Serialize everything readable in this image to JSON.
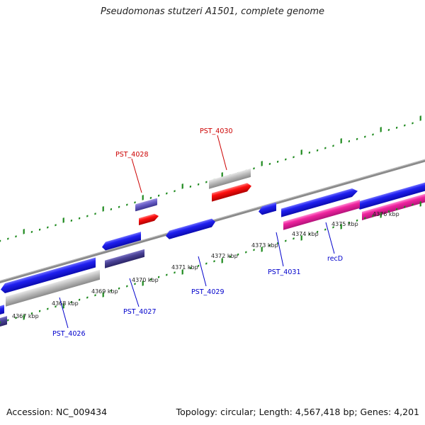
{
  "title": "Pseudomonas stutzeri A1501, complete genome",
  "footer": {
    "accession": "Accession: NC_009434",
    "stats": "Topology: circular; Length: 4,567,418 bp; Genes: 4,201"
  },
  "colors": {
    "forward_gene": "#1a1aee",
    "reverse_gene": "#2b2bd9",
    "rna_gene": "#ee1111",
    "pseudogene": "#b8b8b8",
    "highlight_gene": "#ee1fa0",
    "hypothetical_gene": "#6a5acd",
    "backbone": "#888888",
    "tick": "#1f8a1f",
    "forward_label": "#cc0000",
    "reverse_label": "#0000cc"
  },
  "kbp_ticks": [
    "4367 kbp",
    "4368 kbp",
    "4369 kbp",
    "4370 kbp",
    "4371 kbp",
    "4372 kbp",
    "4373 kbp",
    "4374 kbp",
    "4375 kbp",
    "4376 kbp"
  ],
  "gene_labels": [
    {
      "id": "PST_4030",
      "text": "PST_4030",
      "strand": "forward"
    },
    {
      "id": "PST_4028",
      "text": "PST_4028",
      "strand": "forward"
    },
    {
      "id": "PST_4031",
      "text": "PST_4031",
      "strand": "reverse"
    },
    {
      "id": "recD",
      "text": "recD",
      "strand": "reverse"
    },
    {
      "id": "PST_4029",
      "text": "PST_4029",
      "strand": "reverse"
    },
    {
      "id": "PST_4027",
      "text": "PST_4027",
      "strand": "reverse"
    },
    {
      "id": "PST_4026",
      "text": "PST_4026",
      "strand": "reverse"
    }
  ]
}
